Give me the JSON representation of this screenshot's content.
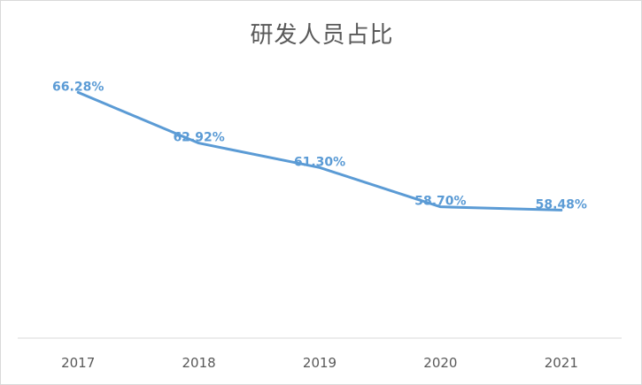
{
  "chart_data": {
    "type": "line",
    "title": "研发人员占比",
    "categories": [
      "2017",
      "2018",
      "2019",
      "2020",
      "2021"
    ],
    "values": [
      66.28,
      62.92,
      61.3,
      58.7,
      58.48
    ],
    "labels": [
      "66.28%",
      "62.92%",
      "61.30%",
      "58.70%",
      "58.48%"
    ],
    "ylim": [
      50,
      70
    ],
    "grid": false,
    "legend": "none",
    "color": "#5b9bd5"
  }
}
